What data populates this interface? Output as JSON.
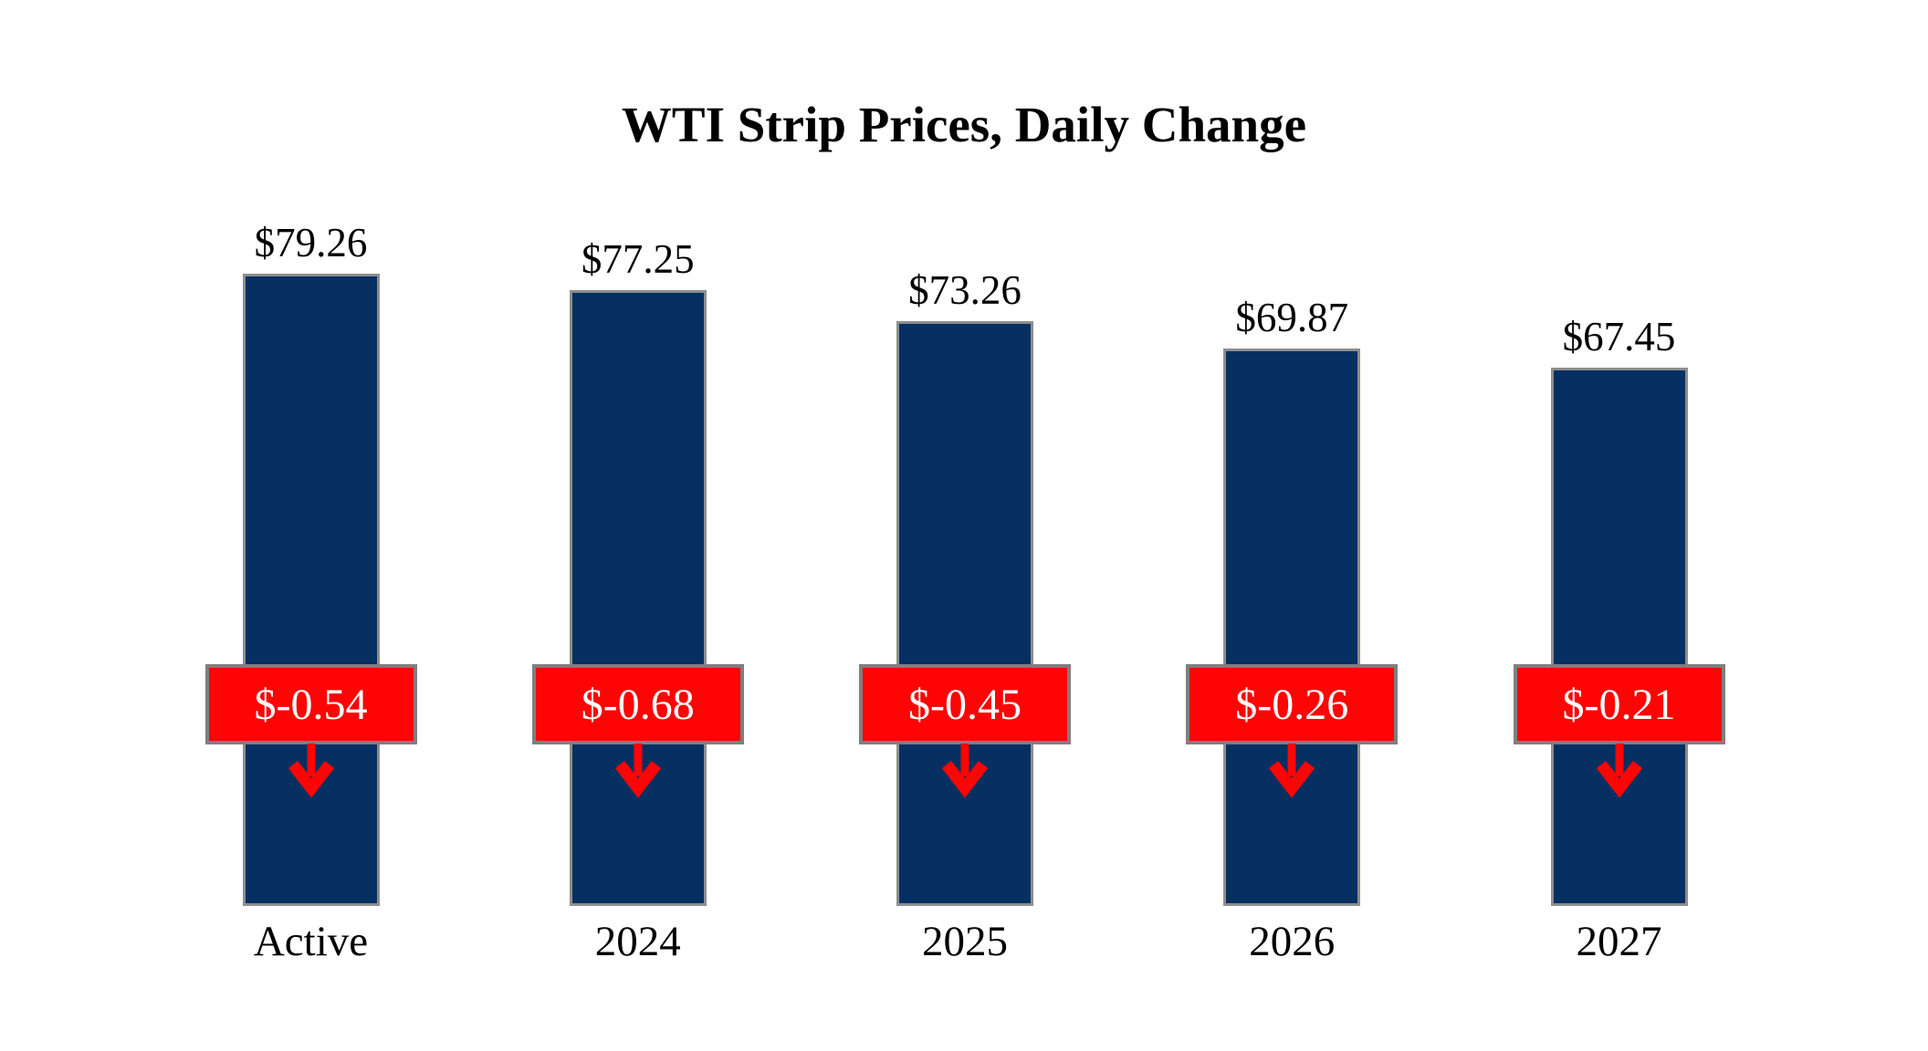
{
  "chart_data": {
    "type": "bar",
    "title": "WTI Strip Prices, Daily Change",
    "categories": [
      "Active",
      "2024",
      "2025",
      "2026",
      "2027"
    ],
    "series": [
      {
        "name": "WTI Strip Price",
        "values": [
          79.26,
          77.25,
          73.26,
          69.87,
          67.45
        ]
      },
      {
        "name": "Daily Change",
        "values": [
          -0.54,
          -0.68,
          -0.45,
          -0.26,
          -0.21
        ]
      }
    ],
    "bars": [
      {
        "category": "Active",
        "price": 79.26,
        "price_label": "$79.26",
        "change": -0.54,
        "change_label": "$-0.54"
      },
      {
        "category": "2024",
        "price": 77.25,
        "price_label": "$77.25",
        "change": -0.68,
        "change_label": "$-0.68"
      },
      {
        "category": "2025",
        "price": 73.26,
        "price_label": "$73.26",
        "change": -0.45,
        "change_label": "$-0.45"
      },
      {
        "category": "2026",
        "price": 69.87,
        "price_label": "$69.87",
        "change": -0.26,
        "change_label": "$-0.26"
      },
      {
        "category": "2027",
        "price": 67.45,
        "price_label": "$67.45",
        "change": -0.21,
        "change_label": "$-0.21"
      }
    ],
    "ylim": [
      0,
      80
    ],
    "baseline_value": 0,
    "grid": false,
    "legend_position": "none",
    "colors": {
      "bar_fill": "#053061",
      "bar_border": "#8e8e8e",
      "badge_fill": "#fe0404",
      "badge_border": "#7f7f7f",
      "badge_text": "#ffffff",
      "arrow": "#fe0404",
      "label_text": "#000000",
      "title_text": "#000000",
      "background": "#ffffff"
    }
  }
}
